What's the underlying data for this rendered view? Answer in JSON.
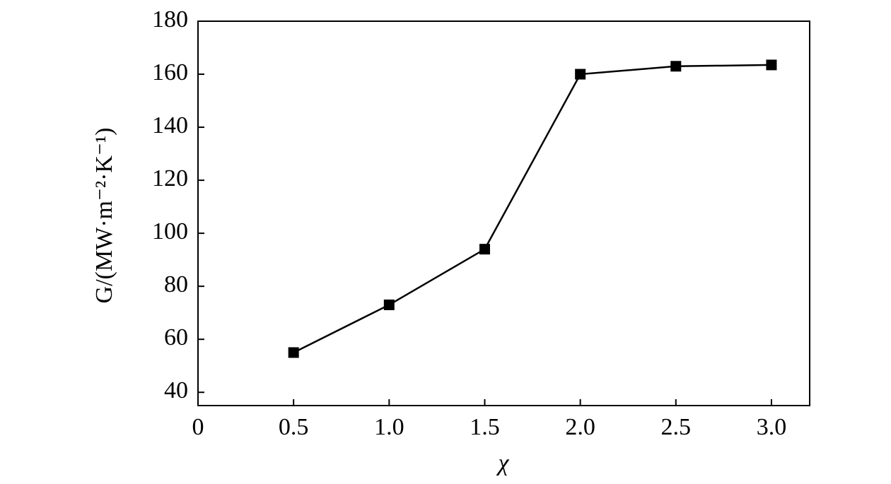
{
  "chart_data": {
    "type": "line",
    "x_label": "χ",
    "y_label": "G/(MW·m⁻²·K⁻¹)",
    "x": [
      0.5,
      1.0,
      1.5,
      2.0,
      2.5,
      3.0
    ],
    "values": [
      55,
      73,
      94,
      160,
      163,
      163.5
    ],
    "color": "#000000",
    "marker": "square",
    "xlim": [
      0,
      3.2
    ],
    "xticks": [
      0,
      0.5,
      {
        "value": 1,
        "label": "1.0"
      },
      1.5,
      {
        "value": 2,
        "label": "2.0"
      },
      2.5,
      {
        "value": 3,
        "label": "3.0"
      }
    ],
    "ylim": [
      35,
      180
    ],
    "yticks": [
      40,
      60,
      80,
      100,
      120,
      140,
      160,
      180
    ],
    "grid": false
  }
}
